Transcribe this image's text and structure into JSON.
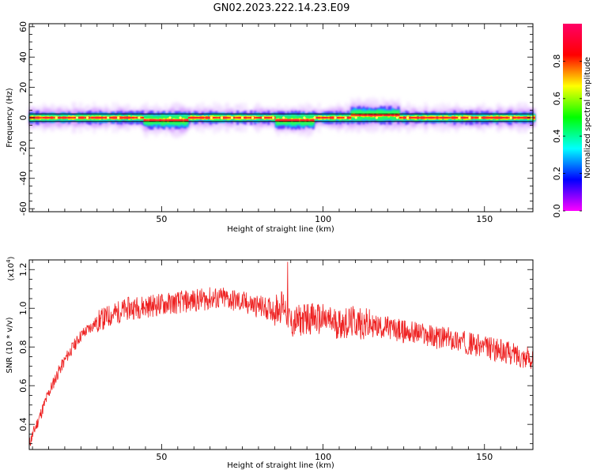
{
  "figure_title": "GN02.2023.222.14.23.E09",
  "colorbar": {
    "label": "Normalized spectral amplitude",
    "ticks": [
      "0.0",
      "0.2",
      "0.4",
      "0.6",
      "0.8"
    ],
    "tick_values": [
      0.0,
      0.2,
      0.4,
      0.6,
      0.8
    ],
    "colors": [
      "#ff00ff",
      "#0000ff",
      "#00ffff",
      "#00ff00",
      "#ffff00",
      "#ff0000",
      "#ff0066"
    ]
  },
  "chart_data": [
    {
      "type": "heatmap",
      "title": "",
      "xlabel": "Height of straight line (km)",
      "ylabel": "Frequency (Hz)",
      "xlim": [
        9,
        165
      ],
      "ylim": [
        -62,
        62
      ],
      "xticks": [
        "50",
        "100",
        "150"
      ],
      "xtick_values": [
        50,
        100,
        150
      ],
      "yticks": [
        "60",
        "40",
        "20",
        "0",
        "-20",
        "-40",
        "-60"
      ],
      "ytick_values": [
        60,
        40,
        20,
        0,
        -20,
        -40,
        -60
      ],
      "grid": false,
      "description_of_band": "narrow band of high amplitude centered near 0 Hz across the whole height range",
      "band_center_hz": 0,
      "band_offsets": [
        {
          "x": [
            44,
            58
          ],
          "offset_hz": -2
        },
        {
          "x": [
            85,
            97
          ],
          "offset_hz": -2
        },
        {
          "x": [
            108,
            123
          ],
          "offset_hz": 2
        }
      ],
      "peak_value_near_0_hz": 0.95
    },
    {
      "type": "line",
      "title": "",
      "xlabel": "Height of straight line (km)",
      "ylabel": "SNR (10 * v/v)",
      "y_scale_label": "(x10",
      "y_scale_exponent": "4",
      "y_scale_suffix": ")",
      "xlim": [
        9,
        165
      ],
      "ylim": [
        0.27,
        1.25
      ],
      "xticks": [
        "50",
        "100",
        "150"
      ],
      "xtick_values": [
        50,
        100,
        150
      ],
      "yticks": [
        "1.2",
        "1.0",
        "0.8",
        "0.6",
        "0.4"
      ],
      "ytick_values": [
        1.2,
        1.0,
        0.8,
        0.6,
        0.4
      ],
      "grid": false,
      "series": [
        {
          "color": "#ee2222",
          "x": [
            9,
            12,
            15,
            18,
            21,
            25,
            30,
            35,
            40,
            45,
            50,
            55,
            60,
            65,
            70,
            75,
            80,
            85,
            88,
            90,
            95,
            100,
            105,
            110,
            115,
            120,
            125,
            130,
            135,
            140,
            145,
            150,
            155,
            160,
            165
          ],
          "y": [
            0.3,
            0.43,
            0.56,
            0.67,
            0.76,
            0.86,
            0.93,
            0.97,
            1.0,
            1.01,
            1.02,
            1.03,
            1.04,
            1.05,
            1.05,
            1.03,
            1.01,
            0.99,
            1.02,
            0.92,
            0.95,
            0.94,
            0.92,
            0.93,
            0.91,
            0.9,
            0.88,
            0.87,
            0.85,
            0.84,
            0.82,
            0.8,
            0.78,
            0.76,
            0.74
          ],
          "noise_amplitude": 0.06,
          "spike": {
            "x": 89,
            "y": 1.24
          }
        }
      ]
    }
  ]
}
